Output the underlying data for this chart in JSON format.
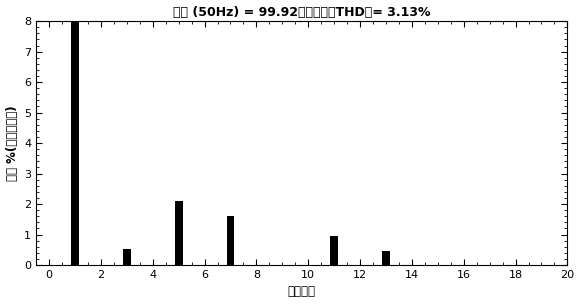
{
  "title": "基波 (50Hz) = 99.92，畸变率（THD）= 3.13%",
  "xlabel": "谐波次数",
  "ylabel": "幅值 %(相对于基波)",
  "harmonics": [
    1,
    3,
    5,
    7,
    11,
    13
  ],
  "amplitudes": [
    8.5,
    0.52,
    2.11,
    1.6,
    0.95,
    0.45
  ],
  "xlim": [
    -0.5,
    20
  ],
  "ylim": [
    0,
    8
  ],
  "xticks": [
    0,
    2,
    4,
    6,
    8,
    10,
    12,
    14,
    16,
    18,
    20
  ],
  "yticks": [
    0,
    1,
    2,
    3,
    4,
    5,
    6,
    7,
    8
  ],
  "bar_width": 0.3,
  "bar_color": "black",
  "bg_color": "white",
  "title_fontsize": 9,
  "label_fontsize": 8.5,
  "tick_fontsize": 8
}
